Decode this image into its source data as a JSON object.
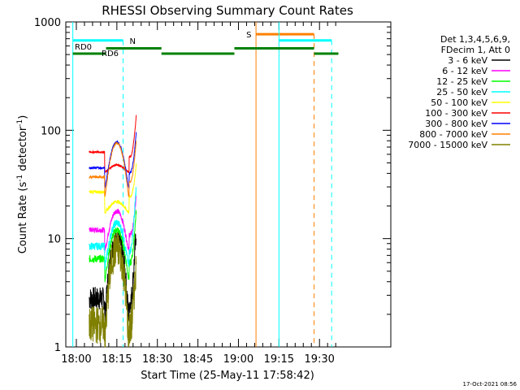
{
  "chart_data": {
    "type": "line",
    "title": "RHESSI Observing Summary Count Rates",
    "xlabel": "Start Time (25-May-11 17:58:42)",
    "ylabel_main": "Count Rate (s",
    "ylabel_exp1": "-1",
    "ylabel_mid": " detector",
    "ylabel_exp2": "-1",
    "ylabel_end": ")",
    "y_scale": "log",
    "ylim": [
      1,
      1000
    ],
    "xlim_minutes": [
      -1.3,
      38.8
    ],
    "x_ticks": [
      {
        "minute": 0,
        "label": "18:00"
      },
      {
        "minute": 15,
        "label": "18:15"
      },
      {
        "minute": 30,
        "label": "18:30"
      },
      {
        "minute": 45,
        "label": "18:45"
      },
      {
        "minute": 60,
        "label": "19:00"
      },
      {
        "minute": 75,
        "label": "19:15"
      },
      {
        "minute": 90,
        "label": "19:30"
      }
    ],
    "y_ticks": [
      {
        "value": 1,
        "label": "1"
      },
      {
        "value": 10,
        "label": "10"
      },
      {
        "value": 100,
        "label": "100"
      },
      {
        "value": 1000,
        "label": "1000"
      }
    ],
    "legend_header": [
      "Det 1,3,4,5,6,9,",
      "FDecim 1, Att 0"
    ],
    "legend_position": "right",
    "series": [
      {
        "name": "3 - 6 keV",
        "color": "#000000",
        "level": 2.8,
        "peak": 10,
        "start_val": 2.8,
        "end_val": 12,
        "noise": 0.22
      },
      {
        "name": "6 - 12 keV",
        "color": "#ff00ff",
        "level": 12,
        "peak": 18,
        "start_val": 12,
        "end_val": 24,
        "noise": 0.05
      },
      {
        "name": "12 - 25 keV",
        "color": "#00ff00",
        "level": 6.5,
        "peak": 12,
        "start_val": 6.5,
        "end_val": 18,
        "noise": 0.07
      },
      {
        "name": "25 - 50 keV",
        "color": "#00ffff",
        "level": 8.5,
        "peak": 14,
        "start_val": 8.5,
        "end_val": 30,
        "noise": 0.07
      },
      {
        "name": "50 - 100 keV",
        "color": "#ffff00",
        "level": 27,
        "peak": 22,
        "start_val": 27,
        "end_val": 48,
        "noise": 0.03
      },
      {
        "name": "100 - 300 keV",
        "color": "#ff0000",
        "level": 63,
        "peak": 48,
        "start_val": 63,
        "end_val": 135,
        "noise": 0.02
      },
      {
        "name": "300 - 800 keV",
        "color": "#0000ff",
        "level": 45,
        "peak": 78,
        "start_val": 45,
        "end_val": 95,
        "noise": 0.02
      },
      {
        "name": "800 - 7000 keV",
        "color": "#ff8000",
        "level": 37,
        "peak": 76,
        "start_val": 37,
        "end_val": 80,
        "noise": 0.02
      },
      {
        "name": "7000 - 15000 keV",
        "color": "#808000",
        "level": 1.6,
        "peak": 8,
        "start_val": 1.6,
        "end_val": 6,
        "noise": 0.35
      }
    ],
    "data_start_minute": 14.3,
    "data_end_minute": 66.5,
    "annotations": {
      "markers": [
        {
          "label": "N",
          "color": "#00ffff",
          "bar_from": -1.3,
          "bar_to": 17.3,
          "level": 675,
          "solid_x": -1.3,
          "dash_x": 17.3
        },
        {
          "label": "S",
          "color": "#ff8000",
          "bar_from": 66.5,
          "bar_to": 88.0,
          "level": 770,
          "solid_x": 66.5,
          "dash_x": 88.0
        },
        {
          "label": "",
          "color": "#00ffff",
          "bar_from": 75.0,
          "bar_to": 94.5,
          "level": 675,
          "solid_x": 75.0,
          "dash_x": 94.5
        }
      ],
      "rd_labels": [
        {
          "label": "RD0",
          "color": "#008000"
        },
        {
          "label": "RD6",
          "color": "#008000"
        }
      ],
      "rd_segments": [
        {
          "from": -1.3,
          "to": 11.0,
          "level": 510
        },
        {
          "from": 11.0,
          "to": 31.5,
          "level": 570
        },
        {
          "from": 31.5,
          "to": 58.5,
          "level": 510
        },
        {
          "from": 58.5,
          "to": 88.0,
          "level": 570
        },
        {
          "from": 88.0,
          "to": 97.0,
          "level": 510
        }
      ]
    },
    "gap_minutes": [
      31.5,
      58.5
    ]
  },
  "timestamp": "17-Oct-2021 08:56"
}
